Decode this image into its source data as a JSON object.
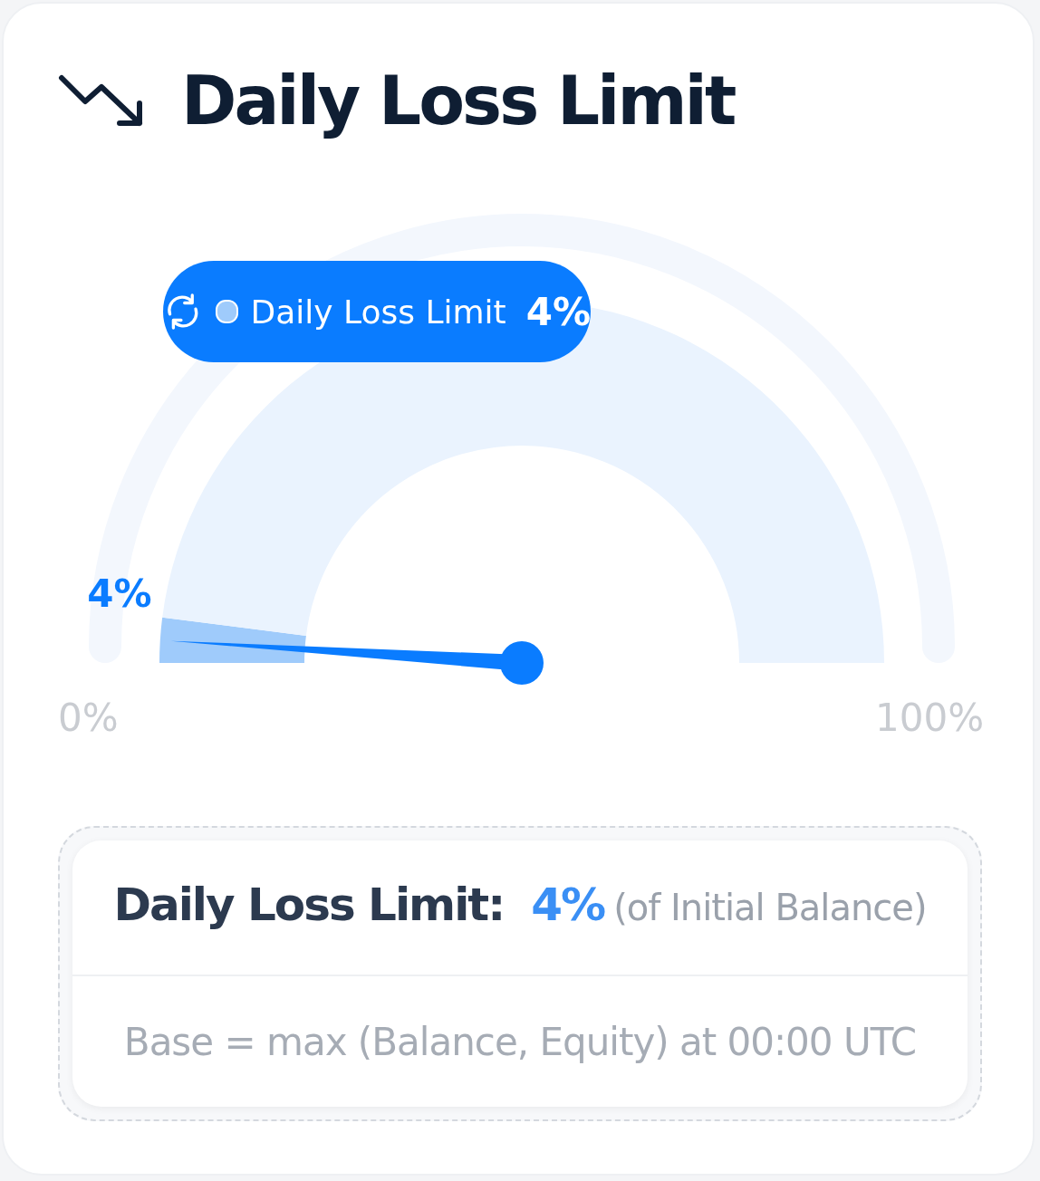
{
  "chart_data": {
    "type": "donut",
    "title": "Daily Loss Limit",
    "categories": [
      "Daily Loss Limit",
      null
    ],
    "values": [
      4,
      96
    ],
    "colors": [
      "#9fcbfb",
      "#eaf3fe"
    ],
    "value_labels": [
      "4%",
      null
    ],
    "needle": "Daily Loss Limit",
    "annotations": [
      "0%",
      "100%",
      "Daily Loss Limit:",
      "(of Initial Balance)",
      "Base = max (Balance, Equity) at 00:00 UTC"
    ]
  }
}
